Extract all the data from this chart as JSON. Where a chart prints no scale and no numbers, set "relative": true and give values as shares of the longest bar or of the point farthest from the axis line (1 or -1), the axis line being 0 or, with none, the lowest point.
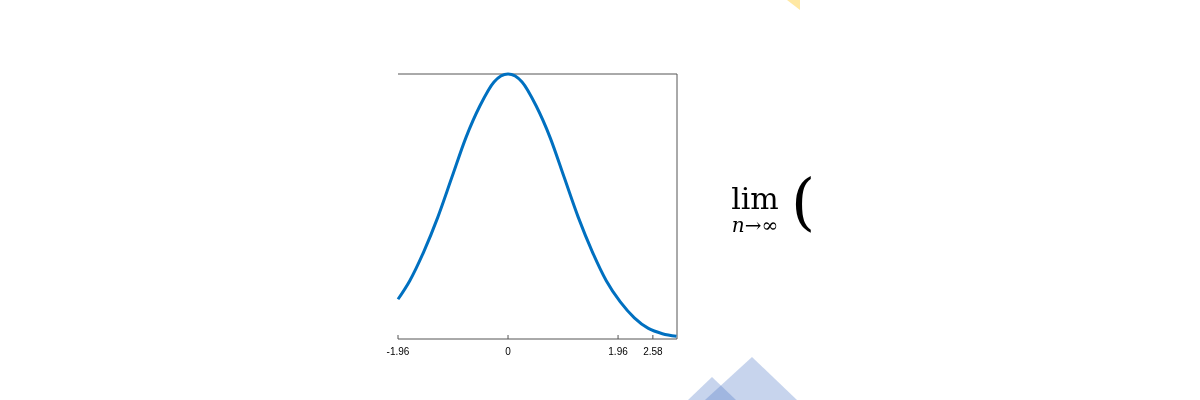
{
  "chart_data": {
    "type": "line",
    "relative": true,
    "x": [
      -1.96,
      -1.75,
      -1.5,
      -1.25,
      -1,
      -0.75,
      -0.5,
      -0.25,
      0,
      0.25,
      0.5,
      0.75,
      1,
      1.25,
      1.5,
      1.75,
      2,
      2.25,
      2.5,
      2.75,
      3.0
    ],
    "series": [
      {
        "color": "#0070c0",
        "values": [
          0.15,
          0.22,
          0.33,
          0.46,
          0.61,
          0.76,
          0.88,
          0.97,
          1,
          0.97,
          0.88,
          0.76,
          0.61,
          0.46,
          0.33,
          0.22,
          0.14,
          0.08,
          0.04,
          0.02,
          0.01
        ]
      }
    ],
    "xlim": [
      -1.96,
      3.01
    ],
    "xticks": [
      -1.96,
      0,
      1.96,
      2.58
    ],
    "grid": false,
    "marker": "none",
    "line_style": "solid",
    "annotations": [
      "lim$_{n→∞}$("
    ]
  }
}
